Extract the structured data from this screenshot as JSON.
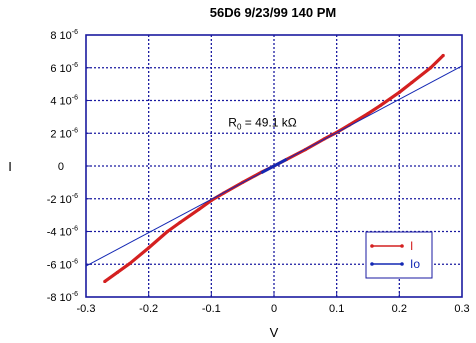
{
  "chart_data": {
    "type": "line",
    "title": "56D6 9/23/99 140 PM",
    "xlabel": "V",
    "ylabel": "I",
    "xlim": [
      -0.3,
      0.3
    ],
    "ylim": [
      -8e-06,
      8e-06
    ],
    "grid": true,
    "legend_position": "bottom-right",
    "x_ticks": [
      {
        "value": -0.3,
        "label": "-0.3"
      },
      {
        "value": -0.2,
        "label": "-0.2"
      },
      {
        "value": -0.1,
        "label": "-0.1"
      },
      {
        "value": 0,
        "label": "0"
      },
      {
        "value": 0.1,
        "label": "0.1"
      },
      {
        "value": 0.2,
        "label": "0.2"
      },
      {
        "value": 0.3,
        "label": "0.3"
      }
    ],
    "y_ticks": [
      {
        "value": 8e-06,
        "mant": "8",
        "exp": "-6"
      },
      {
        "value": 6e-06,
        "mant": "6",
        "exp": "-6"
      },
      {
        "value": 4e-06,
        "mant": "4",
        "exp": "-6"
      },
      {
        "value": 2e-06,
        "mant": "2",
        "exp": "-6"
      },
      {
        "value": 0,
        "mant": "0",
        "exp": ""
      },
      {
        "value": -2e-06,
        "mant": "-2",
        "exp": "-6"
      },
      {
        "value": -4e-06,
        "mant": "-4",
        "exp": "-6"
      },
      {
        "value": -6e-06,
        "mant": "-6",
        "exp": "-6"
      },
      {
        "value": -8e-06,
        "mant": "-8",
        "exp": "-6"
      }
    ],
    "series": [
      {
        "name": "I",
        "color": "#d42020",
        "x": [
          -0.27,
          -0.25,
          -0.23,
          -0.2,
          -0.17,
          -0.15,
          -0.12,
          -0.1,
          -0.08,
          -0.05,
          -0.02,
          0,
          0.02,
          0.05,
          0.08,
          0.1,
          0.12,
          0.15,
          0.17,
          0.2,
          0.22,
          0.25,
          0.27
        ],
        "y": [
          -7.05e-06,
          -6.5e-06,
          -5.95e-06,
          -5e-06,
          -4e-06,
          -3.45e-06,
          -2.65e-06,
          -2.1e-06,
          -1.65e-06,
          -1e-06,
          -3.8e-07,
          0,
          4e-07,
          1e-06,
          1.65e-06,
          2.05e-06,
          2.5e-06,
          3.2e-06,
          3.7e-06,
          4.5e-06,
          5.1e-06,
          6e-06,
          6.75e-06
        ]
      },
      {
        "name": "Io",
        "color": "#1428b4",
        "x": [
          -0.3,
          0.3
        ],
        "y": [
          -6.11e-06,
          6.11e-06
        ]
      }
    ],
    "annotations": [
      {
        "text_main": "R",
        "text_sub": "0",
        "text_rest": " = 49.1 kΩ",
        "x": -0.065,
        "y": 2.05e-06
      }
    ],
    "legend_labels": [
      "I",
      "Io"
    ]
  }
}
